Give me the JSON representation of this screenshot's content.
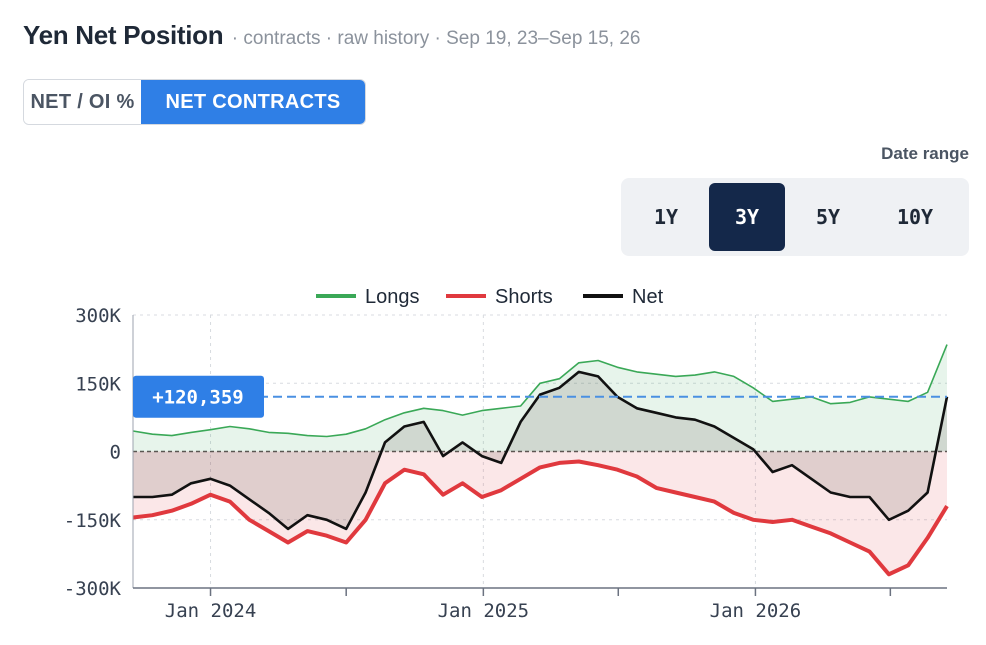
{
  "header": {
    "title": "Yen Net Position",
    "subtitle": "· contracts · raw history · Sep 19, 23–Sep 15, 26"
  },
  "mode_toggle": {
    "options": [
      {
        "label": "NET / OI %",
        "active": false
      },
      {
        "label": "NET CONTRACTS",
        "active": true
      }
    ]
  },
  "date_range": {
    "label": "Date range",
    "options": [
      {
        "label": "1Y",
        "active": false
      },
      {
        "label": "3Y",
        "active": true
      },
      {
        "label": "5Y",
        "active": false
      },
      {
        "label": "10Y",
        "active": false
      }
    ]
  },
  "colors": {
    "longs": "#3aa857",
    "shorts": "#e0393e",
    "net": "#111111",
    "accent": "#2f7fe6",
    "reference": "#4a90e2"
  },
  "chart_data": {
    "type": "line",
    "legend": [
      "Longs",
      "Shorts",
      "Net"
    ],
    "legend_position": "top-center",
    "x_range": [
      "2023-09-19",
      "2026-09-15"
    ],
    "ylim": [
      -300000,
      300000
    ],
    "y_ticks": [
      {
        "value": 300000,
        "label": "300K"
      },
      {
        "value": 150000,
        "label": "150K"
      },
      {
        "value": 0,
        "label": "0"
      },
      {
        "value": -150000,
        "label": "-150K"
      },
      {
        "value": -300000,
        "label": "-300K"
      }
    ],
    "x_ticks": [
      {
        "date": "2024-01-01",
        "label": "Jan 2024"
      },
      {
        "date": "2025-01-01",
        "label": "Jan 2025"
      },
      {
        "date": "2026-01-01",
        "label": "Jan 2026"
      }
    ],
    "minor_ticks": [
      "2024-07-01",
      "2025-07-01",
      "2026-07-01"
    ],
    "grid": true,
    "reference_line": {
      "value": 120359,
      "label": "+120,359"
    },
    "dates": [
      "2023-09-19",
      "2023-10-15",
      "2023-11-10",
      "2023-12-06",
      "2024-01-01",
      "2024-01-27",
      "2024-02-22",
      "2024-03-19",
      "2024-04-14",
      "2024-05-10",
      "2024-06-05",
      "2024-07-01",
      "2024-07-27",
      "2024-08-22",
      "2024-09-17",
      "2024-10-13",
      "2024-11-08",
      "2024-12-04",
      "2024-12-30",
      "2025-01-25",
      "2025-02-20",
      "2025-03-18",
      "2025-04-13",
      "2025-05-09",
      "2025-06-04",
      "2025-06-30",
      "2025-07-26",
      "2025-08-21",
      "2025-09-16",
      "2025-10-12",
      "2025-11-07",
      "2025-12-03",
      "2025-12-29",
      "2026-01-24",
      "2026-02-19",
      "2026-03-17",
      "2026-04-12",
      "2026-05-08",
      "2026-06-03",
      "2026-06-29",
      "2026-07-25",
      "2026-08-20",
      "2026-09-15"
    ],
    "series": [
      {
        "name": "Longs",
        "values": [
          45000,
          38000,
          35000,
          42000,
          48000,
          55000,
          50000,
          42000,
          40000,
          35000,
          33000,
          38000,
          50000,
          70000,
          85000,
          95000,
          90000,
          80000,
          90000,
          95000,
          100000,
          150000,
          160000,
          195000,
          200000,
          185000,
          175000,
          170000,
          165000,
          168000,
          175000,
          165000,
          140000,
          110000,
          115000,
          120000,
          105000,
          108000,
          120000,
          115000,
          110000,
          130000,
          235000
        ]
      },
      {
        "name": "Shorts",
        "values": [
          -145000,
          -140000,
          -130000,
          -115000,
          -95000,
          -110000,
          -150000,
          -175000,
          -200000,
          -175000,
          -185000,
          -200000,
          -150000,
          -70000,
          -40000,
          -50000,
          -95000,
          -70000,
          -100000,
          -85000,
          -60000,
          -35000,
          -25000,
          -22000,
          -30000,
          -40000,
          -55000,
          -80000,
          -90000,
          -100000,
          -110000,
          -135000,
          -150000,
          -155000,
          -150000,
          -165000,
          -180000,
          -200000,
          -220000,
          -270000,
          -250000,
          -190000,
          -120000
        ]
      },
      {
        "name": "Net",
        "values": [
          -100000,
          -100000,
          -95000,
          -70000,
          -60000,
          -75000,
          -105000,
          -135000,
          -170000,
          -140000,
          -150000,
          -170000,
          -90000,
          20000,
          55000,
          65000,
          -10000,
          20000,
          -10000,
          -25000,
          65000,
          125000,
          140000,
          175000,
          165000,
          120000,
          95000,
          85000,
          75000,
          70000,
          55000,
          30000,
          5000,
          -45000,
          -30000,
          -60000,
          -90000,
          -100000,
          -100000,
          -150000,
          -130000,
          -90000,
          120359
        ]
      }
    ]
  }
}
